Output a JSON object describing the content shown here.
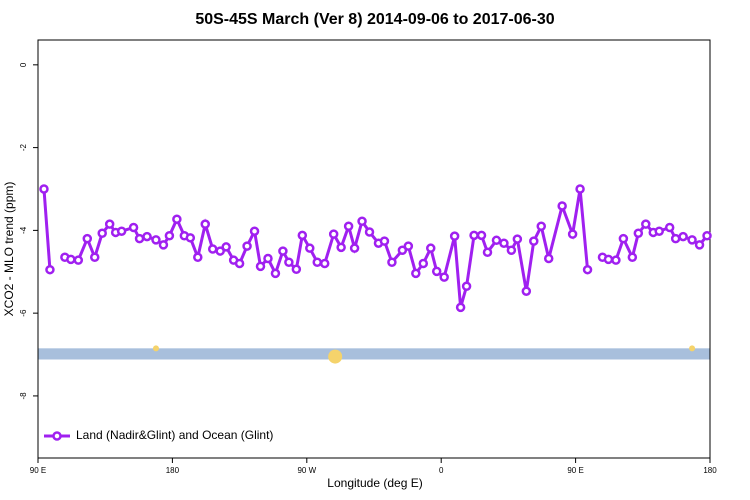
{
  "chart_data": {
    "type": "line",
    "title": "50S-45S March (Ver 8)   2014-09-06 to 2017-06-30",
    "xlabel": "Longitude (deg E)",
    "ylabel": "XCO2 - MLO trend (ppm)",
    "xlim": [
      90,
      540
    ],
    "ylim": [
      -9.5,
      0.6
    ],
    "xticks": [
      {
        "value": 90,
        "label": "90 E"
      },
      180,
      {
        "value": 270,
        "label": "90 W"
      },
      {
        "value": 360,
        "label": "0"
      },
      {
        "value": 450,
        "label": "90 E"
      },
      {
        "value": 540,
        "label": "180"
      }
    ],
    "yticks": [
      0,
      -2,
      -4,
      -6,
      -8
    ],
    "legend": "bottom-left",
    "band": {
      "ymin": -7.12,
      "ymax": -6.85,
      "color": "#a8bfdc"
    },
    "highlights": {
      "color": "#f5d36b",
      "x": [
        169,
        289,
        528
      ],
      "y": [
        -6.85,
        -7.05,
        -6.85
      ],
      "size": [
        3,
        7,
        3
      ]
    },
    "x": [
      94,
      98,
      103,
      108,
      112,
      117,
      123,
      128,
      133,
      138,
      142,
      146,
      154,
      158,
      163,
      169,
      174,
      178,
      183,
      188,
      192,
      197,
      202,
      207,
      212,
      216,
      221,
      225,
      230,
      235,
      239,
      244,
      249,
      254,
      258,
      263,
      267,
      272,
      277,
      282,
      288,
      293,
      298,
      302,
      307,
      312,
      318,
      322,
      327,
      334,
      338,
      343,
      348,
      353,
      357,
      362,
      369,
      373,
      377,
      382,
      387,
      391,
      397,
      402,
      407,
      411,
      417,
      422,
      427,
      432,
      441,
      448,
      453,
      458,
      463,
      468,
      472,
      477,
      482,
      488,
      492,
      497,
      502,
      506,
      513,
      517,
      522,
      528,
      533,
      538
    ],
    "series": [
      {
        "name": "Land (Nadir&Glint) and Ocean (Glint)",
        "color": "#a020f0",
        "values": [
          -3.0,
          -4.95,
          null,
          -4.65,
          -4.7,
          -4.72,
          -4.2,
          -4.65,
          -4.07,
          -3.85,
          -4.05,
          -4.02,
          -3.93,
          -4.2,
          -4.15,
          -4.23,
          -4.35,
          -4.13,
          -3.73,
          -4.13,
          -4.18,
          -4.65,
          -3.85,
          -4.45,
          -4.5,
          -4.4,
          -4.72,
          -4.8,
          -4.38,
          -4.02,
          -4.87,
          -4.68,
          -5.04,
          -4.5,
          -4.77,
          -4.94,
          -4.12,
          -4.43,
          -4.77,
          -4.8,
          -4.09,
          -4.41,
          -3.9,
          -4.43,
          -3.78,
          -4.04,
          -4.31,
          -4.26,
          -4.77,
          -4.48,
          -4.38,
          -5.04,
          -4.8,
          -4.43,
          -4.99,
          -5.13,
          -4.14,
          -5.86,
          -5.35,
          -4.12,
          -4.12,
          -4.53,
          -4.24,
          -4.31,
          -4.48,
          -4.21,
          -5.47,
          -4.26,
          -3.9,
          -4.68,
          -3.41,
          -4.09,
          -3.0,
          -4.95,
          null,
          -4.65,
          -4.7,
          -4.72,
          -4.2,
          -4.65,
          -4.07,
          -3.85,
          -4.05,
          -4.02,
          -3.93,
          -4.2,
          -4.15,
          -4.23,
          -4.35,
          -4.13
        ]
      }
    ]
  }
}
